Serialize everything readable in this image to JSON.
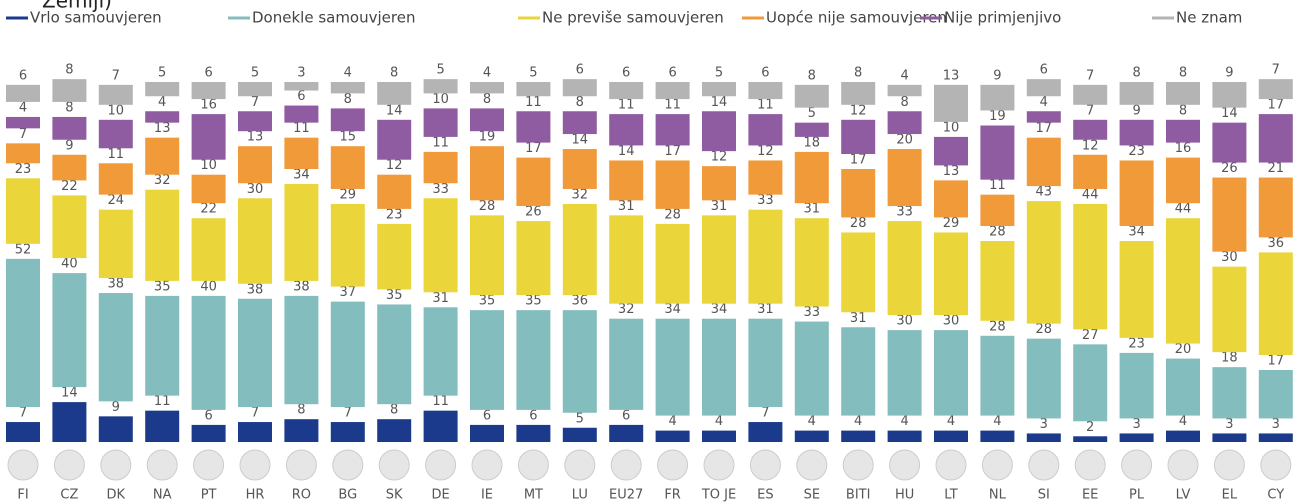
{
  "chart_data": {
    "type": "stacked-bar",
    "title": "Zemlji)",
    "categories": [
      "FI",
      "CZ",
      "DK",
      "NA",
      "PT",
      "HR",
      "RO",
      "BG",
      "SK",
      "DE",
      "IE",
      "MT",
      "LU",
      "EU27",
      "FR",
      "TO JE",
      "ES",
      "SE",
      "BITI",
      "HU",
      "LT",
      "NL",
      "SI",
      "EE",
      "PL",
      "LV",
      "EL",
      "CY"
    ],
    "series": [
      {
        "name": "Vrlo samouvjeren",
        "color": "#1b3a8c",
        "values": [
          7,
          14,
          9,
          11,
          6,
          7,
          8,
          7,
          8,
          11,
          6,
          6,
          5,
          6,
          4,
          4,
          7,
          4,
          4,
          4,
          4,
          4,
          3,
          2,
          3,
          4,
          3,
          3
        ]
      },
      {
        "name": "Donekle samouvjeren",
        "color": "#84bdbe",
        "values": [
          52,
          40,
          38,
          35,
          40,
          38,
          38,
          37,
          35,
          31,
          35,
          35,
          36,
          32,
          34,
          34,
          31,
          33,
          31,
          30,
          30,
          28,
          28,
          27,
          23,
          20,
          18,
          17
        ]
      },
      {
        "name": "Ne previše samouvjeren",
        "color": "#ead63b",
        "values": [
          23,
          22,
          24,
          32,
          22,
          30,
          34,
          29,
          23,
          33,
          28,
          26,
          32,
          31,
          28,
          31,
          33,
          31,
          28,
          33,
          29,
          28,
          43,
          44,
          34,
          44,
          30,
          36
        ]
      },
      {
        "name": "Uopće nije samouvjeren",
        "color": "#f09a3a",
        "values": [
          7,
          9,
          11,
          13,
          10,
          13,
          11,
          15,
          12,
          11,
          19,
          17,
          14,
          14,
          17,
          12,
          12,
          18,
          17,
          20,
          13,
          11,
          17,
          12,
          23,
          16,
          26,
          21
        ]
      },
      {
        "name": "Nije primjenjivo",
        "color": "#8f5ba1",
        "values": [
          4,
          8,
          10,
          4,
          16,
          7,
          6,
          8,
          14,
          10,
          8,
          11,
          8,
          11,
          11,
          14,
          11,
          5,
          12,
          8,
          10,
          19,
          4,
          7,
          9,
          8,
          14,
          17
        ]
      },
      {
        "name": "Ne znam",
        "color": "#b4b4b4",
        "values": [
          6,
          8,
          7,
          5,
          6,
          5,
          3,
          4,
          8,
          5,
          4,
          5,
          6,
          6,
          6,
          5,
          6,
          8,
          8,
          4,
          13,
          9,
          6,
          7,
          8,
          8,
          9,
          7
        ]
      }
    ]
  }
}
